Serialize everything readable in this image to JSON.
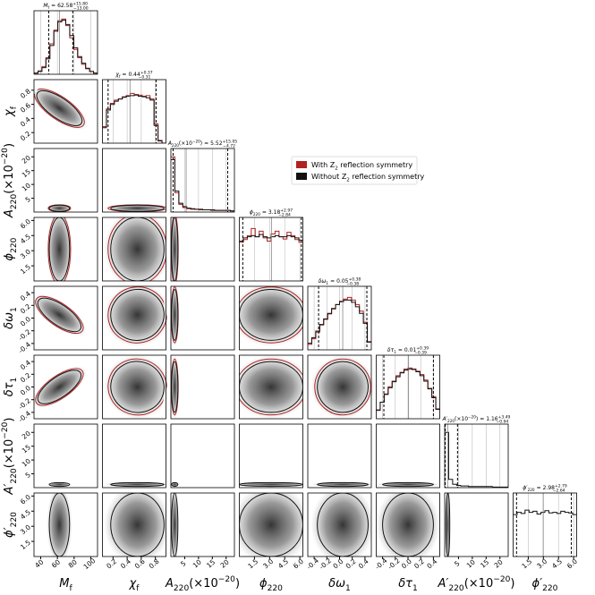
{
  "chart_data": {
    "type": "corner",
    "title_separator": "=",
    "density_ylim": [
      0,
      1.15
    ],
    "legend": [
      {
        "color": "#b22222",
        "parts": [
          {
            "t": "With "
          },
          {
            "t": "Z"
          },
          {
            "t": "2",
            "s": "sub"
          },
          {
            "t": " reflection symmetry"
          }
        ]
      },
      {
        "color": "#111111",
        "parts": [
          {
            "t": "Without "
          },
          {
            "t": "Z"
          },
          {
            "t": "2",
            "s": "sub"
          },
          {
            "t": " reflection symmetry"
          }
        ]
      }
    ],
    "params": [
      {
        "label": [
          {
            "t": "M"
          },
          {
            "t": "f",
            "s": "sub"
          }
        ],
        "xlim": [
          32,
          108
        ],
        "ticks": [
          40,
          60,
          80,
          100
        ],
        "median": 62.58,
        "plus": {
          "value": 15.8,
          "label": "+15.80"
        },
        "minus": {
          "value": 13,
          "label": "−13.00"
        },
        "hist": [
          {
            "color": "#b22222",
            "values": [
              0.02,
              0.06,
              0.14,
              0.3,
              0.55,
              0.8,
              0.97,
              1.0,
              0.88,
              0.66,
              0.45,
              0.3,
              0.18,
              0.1,
              0.05,
              0.02
            ]
          },
          {
            "color": "#111111",
            "values": [
              0.02,
              0.05,
              0.12,
              0.28,
              0.52,
              0.78,
              0.95,
              0.98,
              0.9,
              0.7,
              0.48,
              0.32,
              0.2,
              0.11,
              0.05,
              0.02
            ]
          }
        ]
      },
      {
        "label": [
          {
            "t": "χ"
          },
          {
            "t": "f",
            "s": "sub"
          }
        ],
        "xlim": [
          0.05,
          0.95
        ],
        "ticks": [
          0.2,
          0.4,
          0.6,
          0.8
        ],
        "median": 0.44,
        "plus": {
          "value": 0.37,
          "label": "+0.37"
        },
        "minus": {
          "value": 0.31,
          "label": "−0.31"
        },
        "hist": [
          {
            "color": "#b22222",
            "values": [
              0.3,
              0.62,
              0.72,
              0.78,
              0.8,
              0.84,
              0.86,
              0.9,
              0.88,
              0.87,
              0.85,
              0.86,
              0.8,
              0.35,
              0.05,
              0
            ]
          },
          {
            "color": "#111111",
            "values": [
              0.28,
              0.6,
              0.7,
              0.76,
              0.8,
              0.83,
              0.85,
              0.86,
              0.87,
              0.85,
              0.84,
              0.82,
              0.78,
              0.32,
              0.04,
              0
            ]
          }
        ]
      },
      {
        "label": [
          {
            "t": "A"
          },
          {
            "t": "220",
            "s": "sub"
          },
          {
            "t": "(×10"
          },
          {
            "t": "−20",
            "s": "sup"
          },
          {
            "t": ")"
          }
        ],
        "xlim": [
          0,
          23
        ],
        "ticks": [
          5,
          10,
          15,
          20
        ],
        "median": 5.52,
        "plus": {
          "value": 15.05,
          "label": "+15.05"
        },
        "minus": {
          "value": 4.72,
          "label": "−4.72"
        },
        "hist": [
          {
            "color": "#b22222",
            "values": [
              1.0,
              0.35,
              0.14,
              0.08,
              0.06,
              0.05,
              0.05,
              0.04,
              0.04,
              0.04,
              0.03,
              0.03,
              0.03,
              0.03,
              0.03,
              0.02
            ]
          },
          {
            "color": "#111111",
            "values": [
              0.95,
              0.38,
              0.16,
              0.1,
              0.07,
              0.06,
              0.05,
              0.05,
              0.04,
              0.04,
              0.04,
              0.03,
              0.03,
              0.03,
              0.03,
              0.02
            ]
          }
        ]
      },
      {
        "label": [
          {
            "t": "ϕ"
          },
          {
            "t": "220",
            "s": "sub"
          }
        ],
        "xlim": [
          0,
          6.3
        ],
        "ticks": [
          1.5,
          {
            "value": 3,
            "label": "3.0"
          },
          4.5,
          {
            "value": 6,
            "label": "6.0"
          }
        ],
        "median": 3.18,
        "plus": {
          "value": 2.97,
          "label": "+2.97"
        },
        "minus": {
          "value": 2.84,
          "label": "−2.84"
        },
        "hist": [
          {
            "color": "#b22222",
            "values": [
              0.7,
              0.75,
              0.82,
              0.95,
              0.8,
              0.9,
              0.78,
              0.72,
              0.85,
              0.9,
              0.8,
              0.76,
              0.88,
              0.82,
              0.75,
              0.7
            ]
          },
          {
            "color": "#111111",
            "values": [
              0.72,
              0.78,
              0.8,
              0.82,
              0.8,
              0.84,
              0.8,
              0.78,
              0.8,
              0.82,
              0.8,
              0.8,
              0.82,
              0.8,
              0.78,
              0.74
            ]
          }
        ]
      },
      {
        "label": [
          {
            "t": "δω"
          },
          {
            "t": "1",
            "s": "sub"
          }
        ],
        "xlim": [
          -0.5,
          0.5
        ],
        "ticks": [
          -0.4,
          -0.2,
          {
            "value": 0,
            "label": "0.0"
          },
          0.2,
          0.4
        ],
        "median": 0.05,
        "plus": {
          "value": 0.38,
          "label": "+0.38"
        },
        "minus": {
          "value": 0.38,
          "label": "−0.38"
        },
        "hist": [
          {
            "color": "#b22222",
            "values": [
              0.1,
              0.2,
              0.32,
              0.45,
              0.55,
              0.65,
              0.74,
              0.82,
              0.88,
              0.92,
              0.95,
              0.9,
              0.82,
              0.7,
              0.5,
              0.15
            ]
          },
          {
            "color": "#111111",
            "values": [
              0.12,
              0.22,
              0.34,
              0.46,
              0.56,
              0.66,
              0.75,
              0.82,
              0.87,
              0.9,
              0.9,
              0.86,
              0.78,
              0.66,
              0.48,
              0.14
            ]
          }
        ]
      },
      {
        "label": [
          {
            "t": "δτ"
          },
          {
            "t": "1",
            "s": "sub"
          }
        ],
        "xlim": [
          -0.5,
          0.5
        ],
        "ticks": [
          -0.4,
          -0.2,
          {
            "value": 0,
            "label": "0.0"
          },
          0.2,
          0.4
        ],
        "median": 0.01,
        "plus": {
          "value": 0.39,
          "label": "+0.39"
        },
        "minus": {
          "value": 0.39,
          "label": "−0.39"
        },
        "hist": [
          {
            "color": "#b22222",
            "values": [
              0.15,
              0.3,
              0.45,
              0.58,
              0.68,
              0.78,
              0.84,
              0.9,
              0.92,
              0.9,
              0.86,
              0.8,
              0.7,
              0.55,
              0.4,
              0.18
            ]
          },
          {
            "color": "#111111",
            "values": [
              0.16,
              0.3,
              0.44,
              0.56,
              0.67,
              0.76,
              0.83,
              0.88,
              0.9,
              0.89,
              0.85,
              0.78,
              0.68,
              0.54,
              0.38,
              0.17
            ]
          }
        ]
      },
      {
        "label": [
          {
            "t": "A′"
          },
          {
            "t": "220",
            "s": "sub"
          },
          {
            "t": "(×10"
          },
          {
            "t": "−20",
            "s": "sup"
          },
          {
            "t": ")"
          }
        ],
        "xlim": [
          0,
          23
        ],
        "ticks": [
          5,
          10,
          15,
          20
        ],
        "median": 1.16,
        "plus": {
          "value": 3.49,
          "label": "+3.49"
        },
        "minus": {
          "value": 0.94,
          "label": "−0.94"
        },
        "hist": [
          {
            "color": "#111111",
            "values": [
              1.0,
              0.15,
              0.06,
              0.04,
              0.03,
              0.03,
              0.02,
              0.02,
              0.02,
              0.02,
              0.02,
              0.02,
              0.01,
              0.01,
              0.01,
              0.01
            ]
          }
        ]
      },
      {
        "label": [
          {
            "t": "ϕ′"
          },
          {
            "t": "220",
            "s": "sub"
          }
        ],
        "xlim": [
          0,
          6.3
        ],
        "ticks": [
          1.5,
          {
            "value": 3,
            "label": "3.0"
          },
          4.5,
          {
            "value": 6,
            "label": "6.0"
          }
        ],
        "median": 2.98,
        "plus": {
          "value": 2.79,
          "label": "+2.79"
        },
        "minus": {
          "value": 2.64,
          "label": "−2.64"
        },
        "hist": [
          {
            "color": "#111111",
            "values": [
              0.76,
              0.8,
              0.78,
              0.84,
              0.8,
              0.82,
              0.77,
              0.8,
              0.83,
              0.79,
              0.8,
              0.78,
              0.82,
              0.8,
              0.79,
              0.76
            ]
          }
        ]
      }
    ]
  }
}
